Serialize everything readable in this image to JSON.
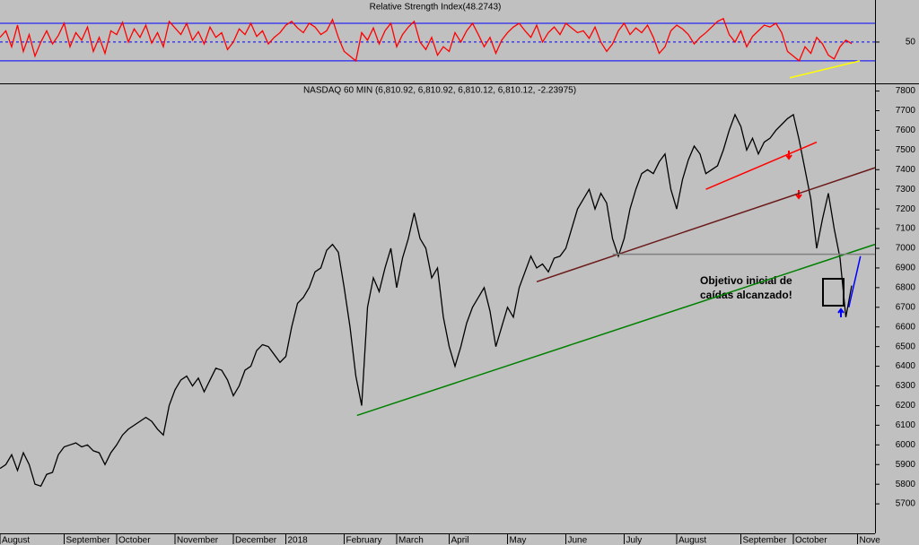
{
  "chart_data": [
    {
      "type": "line",
      "title": "Relative Strength Index(48.2743)",
      "xlim": [
        0,
        150
      ],
      "ylim": [
        7,
        90
      ],
      "yticks": [
        50
      ],
      "bands": [
        30,
        70
      ],
      "series": [
        {
          "name": "RSI",
          "color": "#ff0000",
          "values": [
            55,
            62,
            45,
            68,
            40,
            58,
            35,
            50,
            62,
            48,
            57,
            70,
            45,
            60,
            52,
            66,
            40,
            55,
            38,
            62,
            58,
            71,
            50,
            64,
            55,
            68,
            49,
            60,
            45,
            72,
            65,
            58,
            70,
            52,
            61,
            48,
            66,
            55,
            60,
            42,
            50,
            64,
            58,
            70,
            56,
            62,
            48,
            55,
            60,
            68,
            72,
            65,
            60,
            70,
            66,
            58,
            62,
            74,
            55,
            40,
            35,
            30,
            60,
            52,
            65,
            48,
            62,
            70,
            45,
            58,
            66,
            72,
            50,
            42,
            55,
            36,
            45,
            40,
            60,
            50,
            62,
            70,
            58,
            45,
            55,
            38,
            52,
            60,
            66,
            70,
            62,
            55,
            68,
            50,
            60,
            66,
            58,
            70,
            65,
            60,
            62,
            54,
            66,
            50,
            40,
            48,
            62,
            70,
            58,
            65,
            60,
            68,
            55,
            38,
            45,
            62,
            68,
            64,
            58,
            48,
            55,
            60,
            66,
            72,
            75,
            58,
            50,
            62,
            45,
            56,
            62,
            68,
            66,
            70,
            60,
            40,
            35,
            30,
            45,
            38,
            55,
            48,
            36,
            32,
            45,
            52,
            48.2743
          ]
        }
      ],
      "lines": [
        {
          "color": "#ffff00",
          "points": [
            [
              135.4,
              12
            ],
            [
              147.4,
              30
            ]
          ]
        }
      ]
    },
    {
      "type": "line",
      "title": "NASDAQ 60 MIN (6,810.92, 6,810.92, 6,810.12, 6,810.12, -2.23975)",
      "xlim": [
        0,
        150
      ],
      "ylim": [
        5550,
        7830
      ],
      "yticks": [
        5700,
        5800,
        5900,
        6000,
        6100,
        6200,
        6300,
        6400,
        6500,
        6600,
        6700,
        6800,
        6900,
        7000,
        7100,
        7200,
        7300,
        7400,
        7500,
        7600,
        7700,
        7800
      ],
      "xticks": [
        {
          "value": 0,
          "label": "August"
        },
        {
          "value": 11,
          "label": "September"
        },
        {
          "value": 20,
          "label": "October"
        },
        {
          "value": 30,
          "label": "November"
        },
        {
          "value": 40,
          "label": "December"
        },
        {
          "value": 49,
          "label": "2018"
        },
        {
          "value": 59,
          "label": "February"
        },
        {
          "value": 68,
          "label": "March"
        },
        {
          "value": 77,
          "label": "April"
        },
        {
          "value": 87,
          "label": "May"
        },
        {
          "value": 97,
          "label": "June"
        },
        {
          "value": 107,
          "label": "July"
        },
        {
          "value": 116,
          "label": "August"
        },
        {
          "value": 127,
          "label": "September"
        },
        {
          "value": 136,
          "label": "October"
        },
        {
          "value": 147,
          "label": "Nove"
        }
      ],
      "series": [
        {
          "name": "NASDAQ 60 MIN",
          "color": "#000000",
          "values": [
            5880,
            5900,
            5950,
            5870,
            5960,
            5900,
            5800,
            5790,
            5850,
            5860,
            5950,
            5990,
            6000,
            6010,
            5990,
            6000,
            5970,
            5960,
            5900,
            5960,
            6000,
            6050,
            6080,
            6100,
            6120,
            6140,
            6120,
            6080,
            6050,
            6200,
            6280,
            6330,
            6350,
            6300,
            6340,
            6270,
            6330,
            6390,
            6380,
            6330,
            6250,
            6300,
            6380,
            6400,
            6480,
            6510,
            6500,
            6460,
            6420,
            6450,
            6600,
            6720,
            6750,
            6800,
            6880,
            6900,
            6990,
            7020,
            6980,
            6800,
            6600,
            6350,
            6200,
            6700,
            6850,
            6780,
            6900,
            7000,
            6800,
            6950,
            7050,
            7180,
            7050,
            7000,
            6850,
            6900,
            6650,
            6500,
            6400,
            6500,
            6620,
            6700,
            6750,
            6800,
            6680,
            6500,
            6600,
            6700,
            6650,
            6800,
            6880,
            6960,
            6900,
            6920,
            6880,
            6950,
            6960,
            7000,
            7100,
            7200,
            7250,
            7300,
            7200,
            7280,
            7230,
            7050,
            6960,
            7050,
            7200,
            7300,
            7380,
            7400,
            7380,
            7440,
            7480,
            7300,
            7200,
            7350,
            7450,
            7520,
            7480,
            7380,
            7400,
            7420,
            7500,
            7600,
            7680,
            7620,
            7500,
            7560,
            7480,
            7540,
            7560,
            7600,
            7630,
            7660,
            7680,
            7550,
            7400,
            7250,
            7000,
            7150,
            7280,
            7100,
            6950,
            6650,
            6810.12
          ]
        }
      ],
      "lines": [
        {
          "color": "#008000",
          "points": [
            [
              61.2,
              6150
            ],
            [
              150,
              7020
            ]
          ]
        },
        {
          "color": "#6b1a1a",
          "points": [
            [
              92,
              6830
            ],
            [
              150,
              7410
            ]
          ]
        },
        {
          "color": "#ff0000",
          "points": [
            [
              121,
              7300
            ],
            [
              140,
              7540
            ]
          ]
        },
        {
          "color": "#808080",
          "points": [
            [
              105,
              6970
            ],
            [
              150,
              6970
            ]
          ]
        },
        {
          "color": "#0000ff",
          "points": [
            [
              145.5,
              6700
            ],
            [
              147.5,
              6960
            ]
          ]
        }
      ],
      "annotation": [
        "Objetivo inicial de",
        "caídas alcanzado!"
      ]
    }
  ]
}
